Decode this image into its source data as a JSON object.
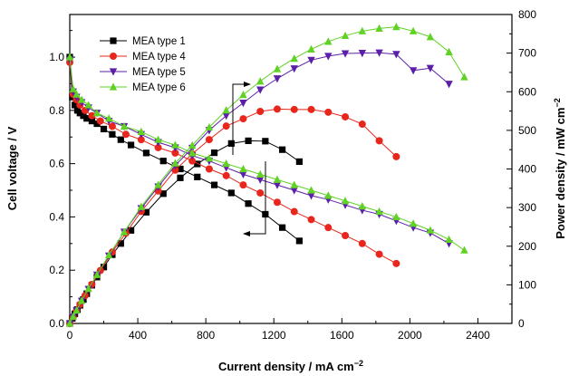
{
  "chart_data": {
    "type": "line",
    "xlabel": "Current density / mA cm",
    "xlabel_superscript": "−2",
    "ylabel_left": "Cell voltage / V",
    "ylabel_right": "Power density / mW cm",
    "ylabel_right_superscript": "−2",
    "xlim": [
      0,
      2600
    ],
    "ylim_left": [
      0,
      1.16
    ],
    "ylim_right": [
      0,
      800
    ],
    "x_ticks": [
      0,
      400,
      800,
      1200,
      1600,
      2000,
      2400
    ],
    "y_left_ticks": [
      0.0,
      0.2,
      0.4,
      0.6,
      0.8,
      1.0
    ],
    "y_left_tick_labels": [
      "0.0",
      "0.2",
      "0.4",
      "0.6",
      "0.8",
      "1.0"
    ],
    "y_right_ticks": [
      0,
      100,
      200,
      300,
      400,
      500,
      600,
      700,
      800
    ],
    "legend_position": "top-left",
    "series": [
      {
        "name": "MEA type 1",
        "color": "#000000",
        "marker": "square",
        "voltage": [
          [
            0,
            1.0
          ],
          [
            15,
            0.85
          ],
          [
            30,
            0.82
          ],
          [
            45,
            0.8
          ],
          [
            60,
            0.79
          ],
          [
            80,
            0.78
          ],
          [
            100,
            0.77
          ],
          [
            130,
            0.76
          ],
          [
            160,
            0.75
          ],
          [
            200,
            0.73
          ],
          [
            250,
            0.71
          ],
          [
            300,
            0.69
          ],
          [
            360,
            0.67
          ],
          [
            450,
            0.64
          ],
          [
            550,
            0.61
          ],
          [
            650,
            0.58
          ],
          [
            750,
            0.55
          ],
          [
            850,
            0.52
          ],
          [
            950,
            0.49
          ],
          [
            1050,
            0.45
          ],
          [
            1150,
            0.41
          ],
          [
            1250,
            0.36
          ],
          [
            1350,
            0.31
          ]
        ],
        "power": [
          [
            0,
            0
          ],
          [
            15,
            13
          ],
          [
            30,
            25
          ],
          [
            45,
            36
          ],
          [
            60,
            47
          ],
          [
            80,
            62
          ],
          [
            100,
            77
          ],
          [
            130,
            99
          ],
          [
            160,
            120
          ],
          [
            200,
            146
          ],
          [
            250,
            178
          ],
          [
            300,
            207
          ],
          [
            360,
            241
          ],
          [
            450,
            288
          ],
          [
            550,
            336
          ],
          [
            650,
            377
          ],
          [
            750,
            413
          ],
          [
            850,
            442
          ],
          [
            950,
            466
          ],
          [
            1050,
            473
          ],
          [
            1150,
            472
          ],
          [
            1250,
            450
          ],
          [
            1350,
            419
          ]
        ]
      },
      {
        "name": "MEA type 4",
        "color": "#e8261c",
        "marker": "circle",
        "voltage": [
          [
            0,
            0.98
          ],
          [
            20,
            0.86
          ],
          [
            40,
            0.84
          ],
          [
            60,
            0.82
          ],
          [
            90,
            0.8
          ],
          [
            130,
            0.78
          ],
          [
            180,
            0.76
          ],
          [
            250,
            0.74
          ],
          [
            330,
            0.71
          ],
          [
            420,
            0.69
          ],
          [
            520,
            0.66
          ],
          [
            620,
            0.64
          ],
          [
            720,
            0.61
          ],
          [
            820,
            0.58
          ],
          [
            920,
            0.555
          ],
          [
            1020,
            0.52
          ],
          [
            1120,
            0.49
          ],
          [
            1220,
            0.455
          ],
          [
            1320,
            0.42
          ],
          [
            1420,
            0.39
          ],
          [
            1520,
            0.36
          ],
          [
            1620,
            0.33
          ],
          [
            1720,
            0.3
          ],
          [
            1820,
            0.26
          ],
          [
            1920,
            0.225
          ]
        ],
        "power": [
          [
            0,
            0
          ],
          [
            20,
            17
          ],
          [
            40,
            34
          ],
          [
            60,
            49
          ],
          [
            90,
            72
          ],
          [
            130,
            101
          ],
          [
            180,
            137
          ],
          [
            250,
            185
          ],
          [
            330,
            234
          ],
          [
            420,
            290
          ],
          [
            520,
            343
          ],
          [
            620,
            397
          ],
          [
            720,
            439
          ],
          [
            820,
            476
          ],
          [
            920,
            511
          ],
          [
            1020,
            530
          ],
          [
            1120,
            549
          ],
          [
            1220,
            555
          ],
          [
            1320,
            554
          ],
          [
            1420,
            554
          ],
          [
            1520,
            547
          ],
          [
            1620,
            535
          ],
          [
            1720,
            516
          ],
          [
            1820,
            473
          ],
          [
            1920,
            432
          ]
        ]
      },
      {
        "name": "MEA type 5",
        "color": "#5b1fa8",
        "marker": "triangle-down",
        "voltage": [
          [
            0,
            0.99
          ],
          [
            20,
            0.87
          ],
          [
            40,
            0.85
          ],
          [
            70,
            0.83
          ],
          [
            110,
            0.81
          ],
          [
            160,
            0.79
          ],
          [
            230,
            0.76
          ],
          [
            320,
            0.74
          ],
          [
            420,
            0.71
          ],
          [
            520,
            0.68
          ],
          [
            620,
            0.66
          ],
          [
            720,
            0.63
          ],
          [
            820,
            0.61
          ],
          [
            920,
            0.585
          ],
          [
            1020,
            0.56
          ],
          [
            1120,
            0.54
          ],
          [
            1220,
            0.52
          ],
          [
            1320,
            0.5
          ],
          [
            1420,
            0.48
          ],
          [
            1520,
            0.465
          ],
          [
            1620,
            0.445
          ],
          [
            1720,
            0.425
          ],
          [
            1820,
            0.41
          ],
          [
            1920,
            0.385
          ],
          [
            2020,
            0.36
          ],
          [
            2120,
            0.34
          ],
          [
            2230,
            0.3
          ]
        ],
        "power": [
          [
            0,
            0
          ],
          [
            20,
            17
          ],
          [
            40,
            34
          ],
          [
            70,
            58
          ],
          [
            110,
            89
          ],
          [
            160,
            126
          ],
          [
            230,
            175
          ],
          [
            320,
            237
          ],
          [
            420,
            298
          ],
          [
            520,
            354
          ],
          [
            620,
            409
          ],
          [
            720,
            454
          ],
          [
            820,
            500
          ],
          [
            920,
            538
          ],
          [
            1020,
            571
          ],
          [
            1120,
            605
          ],
          [
            1220,
            634
          ],
          [
            1320,
            660
          ],
          [
            1420,
            682
          ],
          [
            1520,
            692
          ],
          [
            1620,
            699
          ],
          [
            1720,
            700
          ],
          [
            1820,
            701
          ],
          [
            1920,
            697
          ],
          [
            2020,
            655
          ],
          [
            2120,
            661
          ],
          [
            2230,
            620
          ]
        ]
      },
      {
        "name": "MEA type 6",
        "color": "#5fd224",
        "marker": "triangle-up",
        "voltage": [
          [
            0,
            1.0
          ],
          [
            20,
            0.88
          ],
          [
            40,
            0.86
          ],
          [
            70,
            0.84
          ],
          [
            110,
            0.82
          ],
          [
            160,
            0.79
          ],
          [
            230,
            0.77
          ],
          [
            320,
            0.74
          ],
          [
            420,
            0.72
          ],
          [
            520,
            0.69
          ],
          [
            620,
            0.67
          ],
          [
            720,
            0.64
          ],
          [
            820,
            0.62
          ],
          [
            920,
            0.6
          ],
          [
            1020,
            0.58
          ],
          [
            1120,
            0.56
          ],
          [
            1220,
            0.54
          ],
          [
            1320,
            0.52
          ],
          [
            1420,
            0.5
          ],
          [
            1520,
            0.48
          ],
          [
            1620,
            0.46
          ],
          [
            1720,
            0.44
          ],
          [
            1820,
            0.42
          ],
          [
            1920,
            0.4
          ],
          [
            2020,
            0.375
          ],
          [
            2120,
            0.35
          ],
          [
            2230,
            0.315
          ],
          [
            2320,
            0.275
          ]
        ],
        "power": [
          [
            0,
            0
          ],
          [
            20,
            18
          ],
          [
            40,
            34
          ],
          [
            70,
            59
          ],
          [
            110,
            90
          ],
          [
            160,
            126
          ],
          [
            230,
            177
          ],
          [
            320,
            237
          ],
          [
            420,
            302
          ],
          [
            520,
            359
          ],
          [
            620,
            415
          ],
          [
            720,
            461
          ],
          [
            820,
            508
          ],
          [
            920,
            552
          ],
          [
            1020,
            592
          ],
          [
            1120,
            627
          ],
          [
            1220,
            659
          ],
          [
            1320,
            686
          ],
          [
            1420,
            710
          ],
          [
            1520,
            730
          ],
          [
            1620,
            745
          ],
          [
            1720,
            757
          ],
          [
            1820,
            764
          ],
          [
            1920,
            768
          ],
          [
            2020,
            757
          ],
          [
            2120,
            742
          ],
          [
            2230,
            703
          ],
          [
            2320,
            638
          ]
        ]
      }
    ],
    "annotation_arrows": [
      {
        "direction": "left",
        "target_axis": "left"
      },
      {
        "direction": "right",
        "target_axis": "right"
      }
    ]
  }
}
